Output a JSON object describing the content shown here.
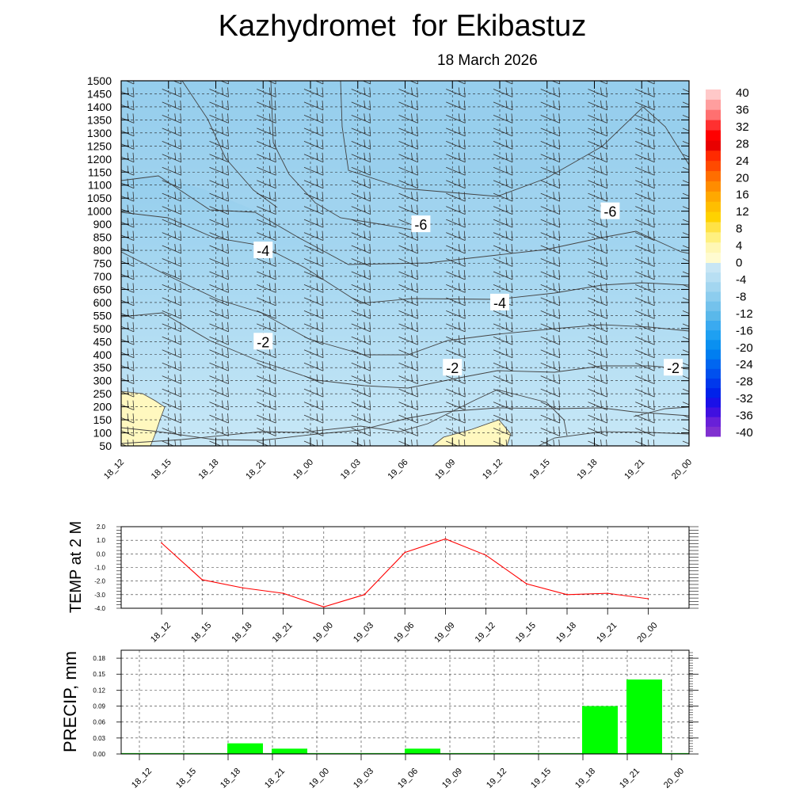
{
  "title": "Kazhydromet  for Ekibastuz",
  "subtitle": "18 March 2026",
  "colors": {
    "warm_zone": "#fff8bf",
    "cold_light": "#c6e6f6",
    "cold_mid": "#a5d6f0",
    "cold_dark": "#86c6ea",
    "contour_line": "#444444",
    "temp_line": "#ff0000",
    "precip_bar": "#00ff00"
  },
  "chart_data": [
    {
      "type": "heatmap",
      "description_of_axes": "time vs pressure/height levels with temperature contours and wind barbs",
      "x_categories": [
        "18_12",
        "18_15",
        "18_18",
        "18_21",
        "19_00",
        "19_03",
        "19_06",
        "19_09",
        "19_12",
        "19_15",
        "19_18",
        "19_21",
        "20_00"
      ],
      "y_levels": [
        50,
        100,
        150,
        200,
        250,
        300,
        350,
        400,
        450,
        500,
        550,
        600,
        650,
        700,
        750,
        800,
        850,
        900,
        1000,
        1050,
        1100,
        1150,
        1200,
        1250,
        1300,
        1350,
        1400,
        1450,
        1500
      ],
      "contour_labels": [
        {
          "value": "-6",
          "x": "19_07",
          "y": 900
        },
        {
          "value": "-6",
          "x": "19_19",
          "y": 1000
        },
        {
          "value": "-4",
          "x": "18_21",
          "y": 800
        },
        {
          "value": "-4",
          "x": "19_12",
          "y": 600
        },
        {
          "value": "-2",
          "x": "18_21",
          "y": 450
        },
        {
          "value": "-2",
          "x": "19_09",
          "y": 350
        },
        {
          "value": "-2",
          "x": "19_23",
          "y": 350
        }
      ],
      "colorbar": {
        "labels": [
          "40",
          "36",
          "32",
          "28",
          "24",
          "20",
          "16",
          "12",
          "8",
          "4",
          "0",
          "-4",
          "-8",
          "-12",
          "-16",
          "-20",
          "-24",
          "-28",
          "-32",
          "-36",
          "-40"
        ],
        "range": [
          -40,
          40
        ]
      }
    },
    {
      "type": "line",
      "ylabel": "TEMP at 2 M",
      "categories": [
        "18_12",
        "18_15",
        "18_18",
        "18_21",
        "19_00",
        "19_03",
        "19_06",
        "19_09",
        "19_12",
        "19_15",
        "19_18",
        "19_21",
        "20_00"
      ],
      "values": [
        0.8,
        -1.9,
        -2.5,
        -2.9,
        -3.9,
        -3.0,
        0.1,
        1.1,
        -0.1,
        -2.2,
        -3.0,
        -2.9,
        -3.3
      ],
      "ylim": [
        -4.0,
        2.0
      ],
      "yticks": [
        "2.0",
        "1.0",
        "0.0",
        "-1.0",
        "-2.0",
        "-3.0",
        "-4.0"
      ]
    },
    {
      "type": "bar",
      "ylabel": "PRECIP, mm",
      "categories": [
        "18_12",
        "18_15",
        "18_18",
        "18_21",
        "19_00",
        "19_03",
        "19_06",
        "19_09",
        "19_12",
        "19_15",
        "19_18",
        "19_21",
        "20_00"
      ],
      "values": [
        0,
        0,
        0.02,
        0.01,
        0,
        0,
        0.01,
        0,
        0,
        0,
        0.09,
        0.14,
        0
      ],
      "ylim": [
        0,
        0.195
      ],
      "yticks": [
        "0.18",
        "0.15",
        "0.12",
        "0.09",
        "0.06",
        "0.03",
        "0.00"
      ]
    }
  ]
}
